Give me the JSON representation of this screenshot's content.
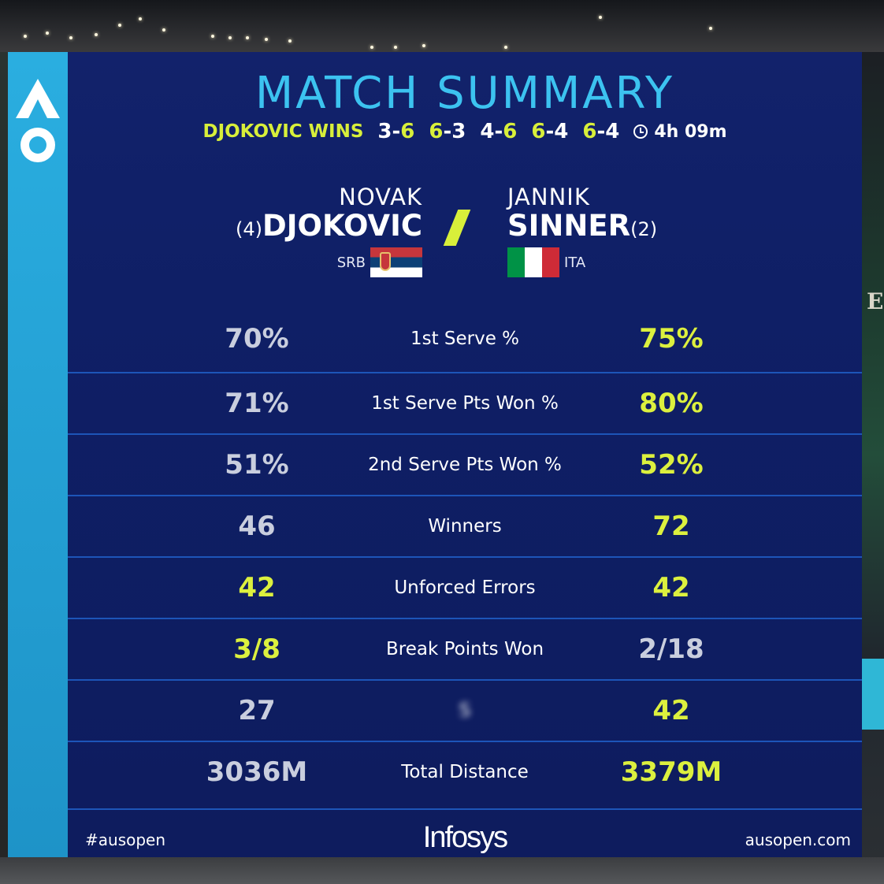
{
  "header": {
    "title": "MATCH SUMMARY",
    "result_label": "DJOKOVIC WINS",
    "sets": [
      {
        "left": "3",
        "right": "6",
        "winner": "right"
      },
      {
        "left": "6",
        "right": "3",
        "winner": "left"
      },
      {
        "left": "4",
        "right": "6",
        "winner": "right"
      },
      {
        "left": "6",
        "right": "4",
        "winner": "left"
      },
      {
        "left": "6",
        "right": "4",
        "winner": "left"
      }
    ],
    "duration": "4h 09m",
    "set_separator": "-"
  },
  "players": {
    "left": {
      "first_name": "NOVAK",
      "last_name": "DJOKOVIC",
      "seed": "(4)",
      "country": "SRB"
    },
    "right": {
      "first_name": "JANNIK",
      "last_name": "SINNER",
      "seed": "(2)",
      "country": "ITA"
    }
  },
  "stats": [
    {
      "label": "1st Serve %",
      "left": "70%",
      "right": "75%",
      "highlight": "right"
    },
    {
      "label": "1st Serve Pts Won %",
      "left": "71%",
      "right": "80%",
      "highlight": "right"
    },
    {
      "label": "2nd Serve Pts Won %",
      "left": "51%",
      "right": "52%",
      "highlight": "right"
    },
    {
      "label": "Winners",
      "left": "46",
      "right": "72",
      "highlight": "right"
    },
    {
      "label": "Unforced Errors",
      "left": "42",
      "right": "42",
      "highlight": "both"
    },
    {
      "label": "Break Points Won",
      "left": "3/8",
      "right": "2/18",
      "highlight": "left"
    },
    {
      "label": "S",
      "left": "27",
      "right": "42",
      "highlight": "right",
      "label_obscured": true
    },
    {
      "label": "Total Distance",
      "left": "3036M",
      "right": "3379M",
      "highlight": "right"
    }
  ],
  "footer": {
    "hashtag": "#ausopen",
    "sponsor": "Infosys",
    "website": "ausopen.com"
  },
  "colors": {
    "panel": "#0f1e63",
    "accent_yellow": "#d8ef3a",
    "title_cyan": "#3cc3f0",
    "brand_strip": "#2aaee0",
    "divider": "#1d55b8"
  },
  "icons": [
    "ao-logo-icon",
    "clock-icon",
    "serbia-flag-icon",
    "italy-flag-icon"
  ]
}
